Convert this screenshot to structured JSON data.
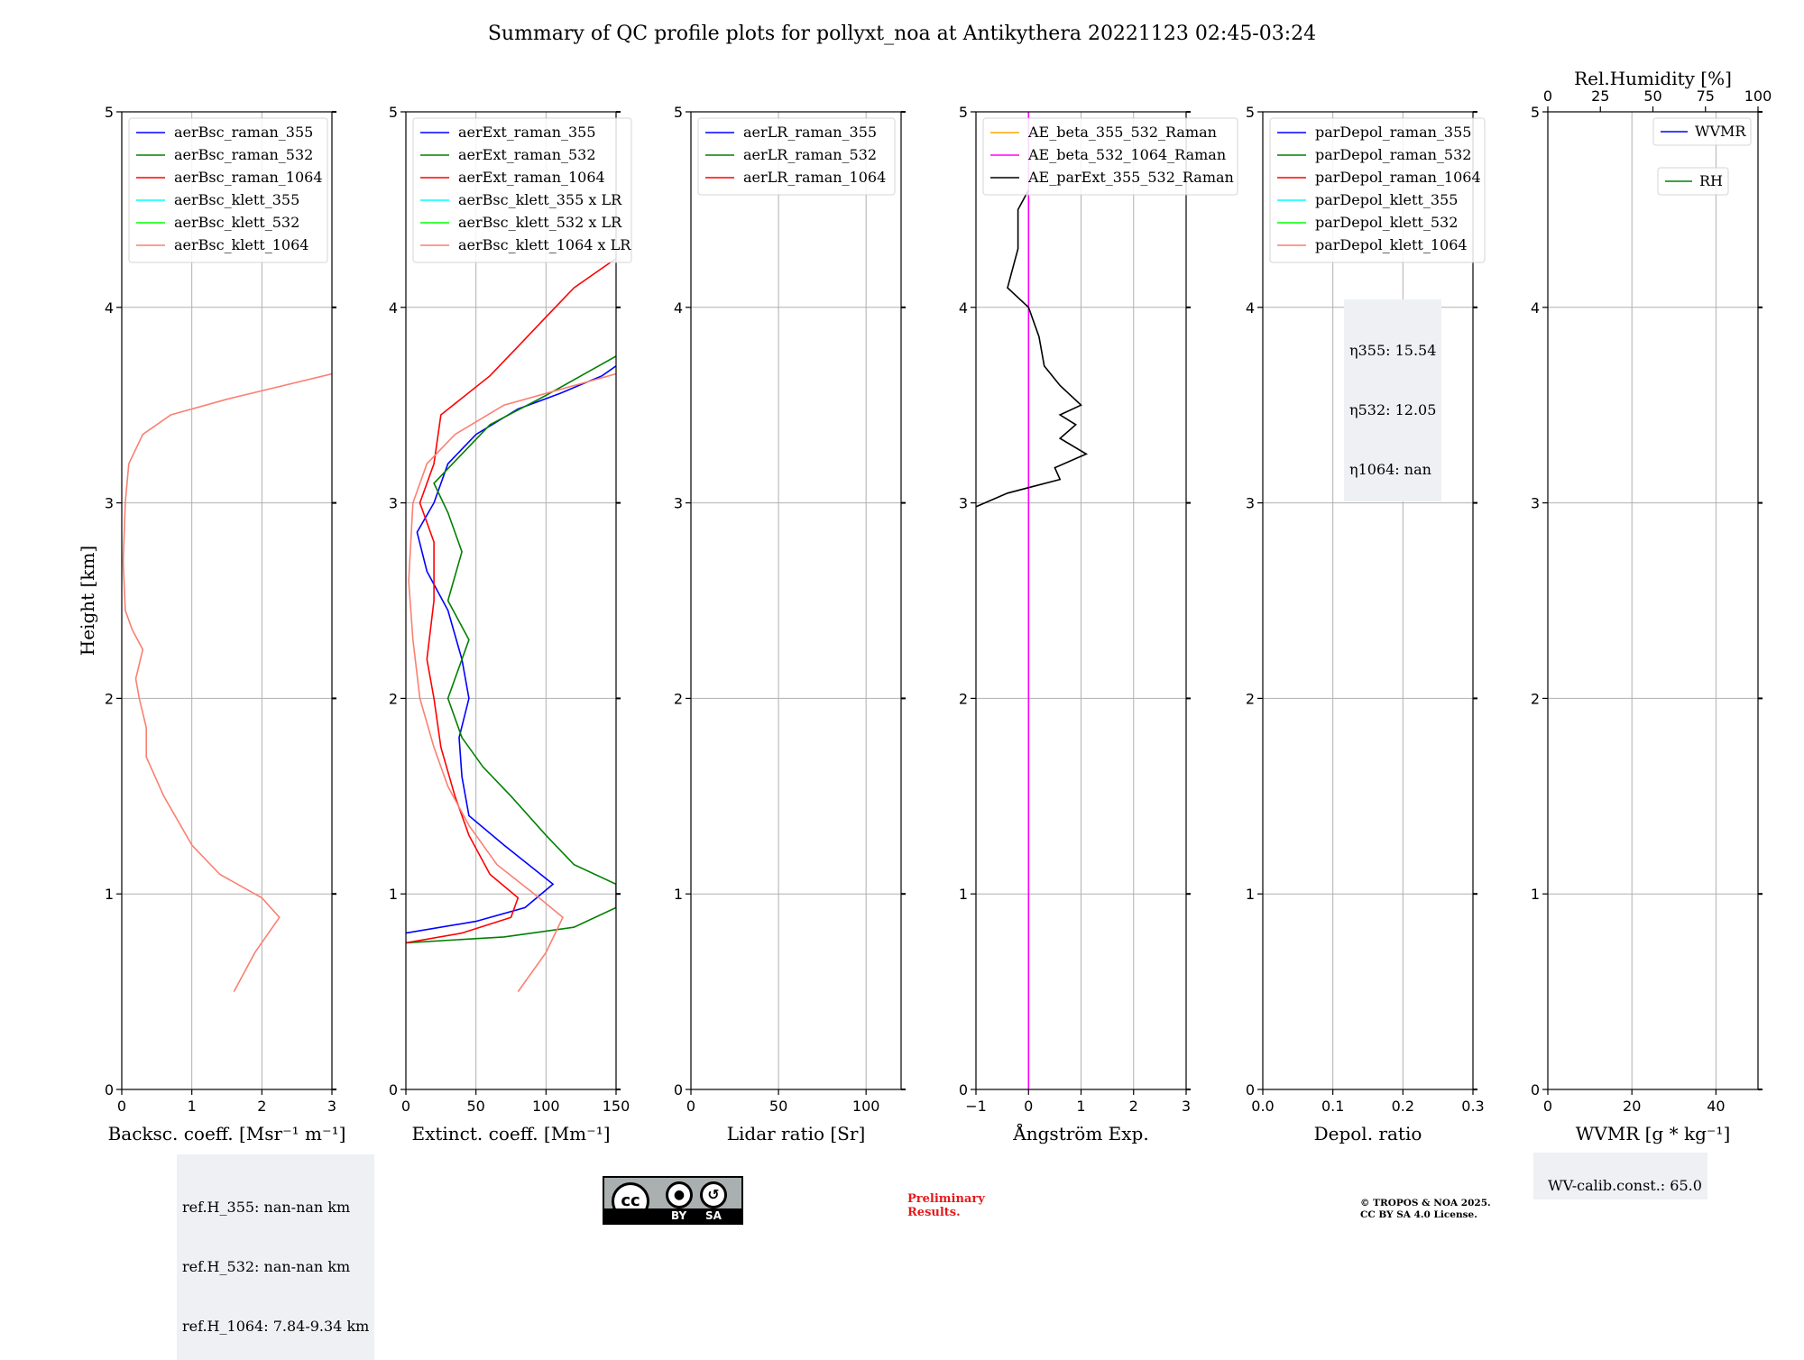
{
  "title": "Summary of QC profile plots for pollyxt_noa at Antikythera 20221123 02:45-03:24",
  "ref_box": [
    "ref.H_355: nan-nan km",
    "ref.H_532: nan-nan km",
    "ref.H_1064: 7.84-9.34 km"
  ],
  "eta_box": [
    "η355: 15.54",
    "η532: 12.05",
    "η1064: nan"
  ],
  "wv_calib": "WV-calib.const.: 65.0",
  "cc_badge": {
    "by": "BY",
    "sa": "SA",
    "cc": "cc"
  },
  "preliminary": [
    "Preliminary",
    "Results."
  ],
  "copyright": [
    "© TROPOS & NOA 2025.",
    "CC BY SA 4.0 License."
  ],
  "colors": {
    "blue": "#0000ff",
    "green": "#008000",
    "red": "#ff0000",
    "cyan": "#00ffff",
    "lime": "#00ff00",
    "salmon": "#fa8072",
    "orange": "#ffa500",
    "magenta": "#ff00ff",
    "black": "#000000"
  },
  "chart_data": [
    {
      "type": "line",
      "ylabel": "Height [km]",
      "xlabel": "Backsc. coeff. [Msr⁻¹ m⁻¹]",
      "xlim": [
        0,
        3
      ],
      "ylim": [
        0,
        5
      ],
      "xticks": [
        "0",
        "1",
        "2",
        "3"
      ],
      "yticks": [
        "0",
        "1",
        "2",
        "3",
        "4",
        "5"
      ],
      "grid": true,
      "legend_position": "top-left",
      "series": [
        {
          "name": "aerBsc_raman_355",
          "color": "blue",
          "points": []
        },
        {
          "name": "aerBsc_raman_532",
          "color": "green",
          "points": []
        },
        {
          "name": "aerBsc_raman_1064",
          "color": "red",
          "points": []
        },
        {
          "name": "aerBsc_klett_355",
          "color": "cyan",
          "points": []
        },
        {
          "name": "aerBsc_klett_532",
          "color": "lime",
          "points": []
        },
        {
          "name": "aerBsc_klett_1064",
          "color": "salmon",
          "points": [
            [
              1.6,
              0.5
            ],
            [
              1.9,
              0.7
            ],
            [
              2.25,
              0.88
            ],
            [
              2.0,
              0.98
            ],
            [
              1.4,
              1.1
            ],
            [
              1.0,
              1.25
            ],
            [
              0.6,
              1.5
            ],
            [
              0.35,
              1.7
            ],
            [
              0.35,
              1.85
            ],
            [
              0.25,
              2.0
            ],
            [
              0.2,
              2.1
            ],
            [
              0.3,
              2.25
            ],
            [
              0.15,
              2.35
            ],
            [
              0.05,
              2.45
            ],
            [
              0.02,
              2.7
            ],
            [
              0.05,
              3.0
            ],
            [
              0.1,
              3.2
            ],
            [
              0.3,
              3.35
            ],
            [
              0.7,
              3.45
            ],
            [
              1.5,
              3.53
            ],
            [
              3.0,
              3.66
            ]
          ]
        }
      ]
    },
    {
      "type": "line",
      "xlabel": "Extinct. coeff. [Mm⁻¹]",
      "xlim": [
        0,
        150
      ],
      "ylim": [
        0,
        5
      ],
      "xticks": [
        "0",
        "50",
        "100",
        "150"
      ],
      "yticks": [
        "0",
        "1",
        "2",
        "3",
        "4",
        "5"
      ],
      "grid": true,
      "legend_position": "top-left",
      "series": [
        {
          "name": "aerExt_raman_355",
          "color": "blue",
          "points": [
            [
              0,
              0.8
            ],
            [
              50,
              0.86
            ],
            [
              85,
              0.93
            ],
            [
              105,
              1.05
            ],
            [
              70,
              1.25
            ],
            [
              45,
              1.4
            ],
            [
              40,
              1.6
            ],
            [
              38,
              1.8
            ],
            [
              45,
              2.0
            ],
            [
              40,
              2.2
            ],
            [
              30,
              2.45
            ],
            [
              15,
              2.65
            ],
            [
              8,
              2.85
            ],
            [
              20,
              3.0
            ],
            [
              30,
              3.2
            ],
            [
              50,
              3.35
            ],
            [
              80,
              3.48
            ],
            [
              110,
              3.56
            ],
            [
              140,
              3.65
            ],
            [
              150,
              3.7
            ]
          ]
        },
        {
          "name": "aerExt_raman_532",
          "color": "green",
          "points": [
            [
              0,
              0.75
            ],
            [
              70,
              0.78
            ],
            [
              120,
              0.83
            ],
            [
              150,
              0.93
            ],
            [
              150,
              1.05
            ],
            [
              120,
              1.15
            ],
            [
              100,
              1.3
            ],
            [
              75,
              1.5
            ],
            [
              55,
              1.65
            ],
            [
              40,
              1.8
            ],
            [
              30,
              2.0
            ],
            [
              45,
              2.3
            ],
            [
              30,
              2.5
            ],
            [
              40,
              2.75
            ],
            [
              30,
              2.95
            ],
            [
              20,
              3.1
            ],
            [
              40,
              3.25
            ],
            [
              60,
              3.4
            ],
            [
              100,
              3.55
            ],
            [
              125,
              3.65
            ],
            [
              150,
              3.75
            ]
          ]
        },
        {
          "name": "aerExt_raman_1064",
          "color": "red",
          "points": [
            [
              0,
              0.75
            ],
            [
              40,
              0.8
            ],
            [
              75,
              0.88
            ],
            [
              80,
              0.98
            ],
            [
              60,
              1.1
            ],
            [
              45,
              1.3
            ],
            [
              35,
              1.5
            ],
            [
              25,
              1.75
            ],
            [
              20,
              2.0
            ],
            [
              15,
              2.2
            ],
            [
              20,
              2.5
            ],
            [
              20,
              2.8
            ],
            [
              10,
              3.0
            ],
            [
              20,
              3.2
            ],
            [
              25,
              3.45
            ],
            [
              60,
              3.65
            ],
            [
              80,
              3.8
            ],
            [
              100,
              3.95
            ],
            [
              120,
              4.1
            ],
            [
              140,
              4.2
            ],
            [
              150,
              4.25
            ]
          ]
        },
        {
          "name": "aerBsc_klett_355 x LR",
          "color": "cyan",
          "points": []
        },
        {
          "name": "aerBsc_klett_532 x LR",
          "color": "lime",
          "points": []
        },
        {
          "name": "aerBsc_klett_1064 x LR",
          "color": "salmon",
          "points": [
            [
              80,
              0.5
            ],
            [
              100,
              0.7
            ],
            [
              112,
              0.88
            ],
            [
              95,
              0.98
            ],
            [
              65,
              1.15
            ],
            [
              45,
              1.35
            ],
            [
              30,
              1.55
            ],
            [
              20,
              1.75
            ],
            [
              10,
              2.0
            ],
            [
              5,
              2.3
            ],
            [
              2,
              2.6
            ],
            [
              5,
              3.0
            ],
            [
              15,
              3.2
            ],
            [
              35,
              3.35
            ],
            [
              70,
              3.5
            ],
            [
              120,
              3.6
            ],
            [
              150,
              3.66
            ]
          ]
        }
      ]
    },
    {
      "type": "line",
      "xlabel": "Lidar ratio [Sr]",
      "xlim": [
        0,
        120
      ],
      "ylim": [
        0,
        5
      ],
      "xticks": [
        "0",
        "50",
        "100"
      ],
      "yticks": [
        "0",
        "1",
        "2",
        "3",
        "4",
        "5"
      ],
      "grid": true,
      "legend_position": "top-left",
      "series": [
        {
          "name": "aerLR_raman_355",
          "color": "blue",
          "points": []
        },
        {
          "name": "aerLR_raman_532",
          "color": "green",
          "points": []
        },
        {
          "name": "aerLR_raman_1064",
          "color": "red",
          "points": []
        }
      ]
    },
    {
      "type": "line",
      "xlabel": "Ångström Exp.",
      "xlim": [
        -1,
        3
      ],
      "ylim": [
        0,
        5
      ],
      "xticks": [
        "−1",
        "0",
        "1",
        "2",
        "3"
      ],
      "yticks": [
        "0",
        "1",
        "2",
        "3",
        "4",
        "5"
      ],
      "grid": true,
      "legend_position": "top-left",
      "series": [
        {
          "name": "AE_beta_355_532_Raman",
          "color": "orange",
          "points": []
        },
        {
          "name": "AE_beta_532_1064_Raman",
          "color": "magenta",
          "points": [
            [
              0,
              0
            ],
            [
              0,
              5
            ]
          ]
        },
        {
          "name": "AE_parExt_355_532_Raman",
          "color": "black",
          "points": [
            [
              -1,
              2.98
            ],
            [
              -0.4,
              3.05
            ],
            [
              0.6,
              3.12
            ],
            [
              0.5,
              3.18
            ],
            [
              1.1,
              3.25
            ],
            [
              0.6,
              3.33
            ],
            [
              0.9,
              3.4
            ],
            [
              0.6,
              3.45
            ],
            [
              1.0,
              3.5
            ],
            [
              0.6,
              3.6
            ],
            [
              0.3,
              3.7
            ],
            [
              0.2,
              3.85
            ],
            [
              0,
              4.0
            ],
            [
              -0.4,
              4.1
            ],
            [
              -0.3,
              4.2
            ],
            [
              -0.2,
              4.3
            ],
            [
              -0.2,
              4.5
            ],
            [
              0,
              4.6
            ]
          ]
        }
      ]
    },
    {
      "type": "line",
      "xlabel": "Depol. ratio",
      "xlim": [
        0,
        0.3
      ],
      "ylim": [
        0,
        5
      ],
      "xticks": [
        "0.0",
        "0.1",
        "0.2",
        "0.3"
      ],
      "yticks": [
        "0",
        "1",
        "2",
        "3",
        "4",
        "5"
      ],
      "grid": true,
      "legend_position": "top-left",
      "series": [
        {
          "name": "parDepol_raman_355",
          "color": "blue",
          "points": []
        },
        {
          "name": "parDepol_raman_532",
          "color": "green",
          "points": []
        },
        {
          "name": "parDepol_raman_1064",
          "color": "red",
          "points": []
        },
        {
          "name": "parDepol_klett_355",
          "color": "cyan",
          "points": []
        },
        {
          "name": "parDepol_klett_532",
          "color": "lime",
          "points": []
        },
        {
          "name": "parDepol_klett_1064",
          "color": "salmon",
          "points": []
        }
      ]
    },
    {
      "type": "line",
      "xlabel": "WVMR [g * kg⁻¹]",
      "top_xlabel": "Rel.Humidity [%]",
      "xlim": [
        0,
        50
      ],
      "top_xlim": [
        0,
        100
      ],
      "ylim": [
        0,
        5
      ],
      "xticks": [
        "0",
        "20",
        "40"
      ],
      "top_xticks": [
        "0",
        "25",
        "50",
        "75",
        "100"
      ],
      "yticks": [
        "0",
        "1",
        "2",
        "3",
        "4",
        "5"
      ],
      "grid": true,
      "legend_position": "top-right",
      "series": [
        {
          "name": "WVMR",
          "color": "blue",
          "points": []
        },
        {
          "name": "RH",
          "color": "green",
          "points": []
        }
      ]
    }
  ]
}
